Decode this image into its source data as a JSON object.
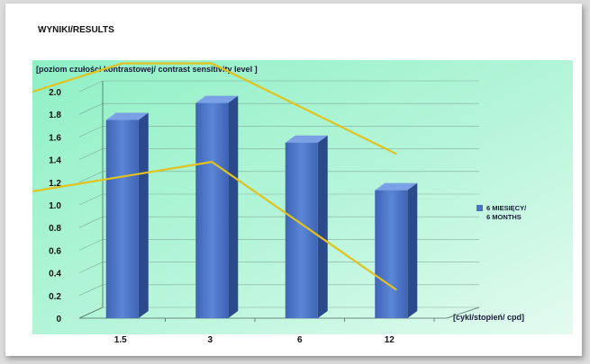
{
  "chart_data": {
    "type": "bar",
    "title": "WYNIKI/RESULTS",
    "ylabel": "[poziom czułości  kontrastowej/ contrast  sensitivity  level ]",
    "xlabel": "[cykl/stopień/ cpd]",
    "categories": [
      "1.5",
      "3",
      "6",
      "12"
    ],
    "series": [
      {
        "name": "6 MIESIĘCY/\n6 MONTHS",
        "values": [
          1.75,
          1.9,
          1.55,
          1.13
        ],
        "color": "#4a73c4"
      }
    ],
    "reference_lines": [
      {
        "role": "upper-norm",
        "x": [
          "0.75",
          "1.5",
          "3",
          "12.5"
        ],
        "values": [
          2.0,
          2.25,
          2.25,
          1.45
        ],
        "color": "#e2c21e"
      },
      {
        "role": "lower-norm",
        "x": [
          "0.75",
          "3",
          "12.5"
        ],
        "values": [
          1.12,
          1.38,
          0.25
        ],
        "color": "#e2c21e"
      }
    ],
    "yticks": [
      "0",
      "0.2",
      "0.4",
      "0.6",
      "0.8",
      "1.0",
      "1.2",
      "1.4",
      "1.6",
      "1.8",
      "2.0"
    ],
    "ylim": [
      0,
      2.0
    ],
    "grid": true,
    "legend_position": "right"
  }
}
